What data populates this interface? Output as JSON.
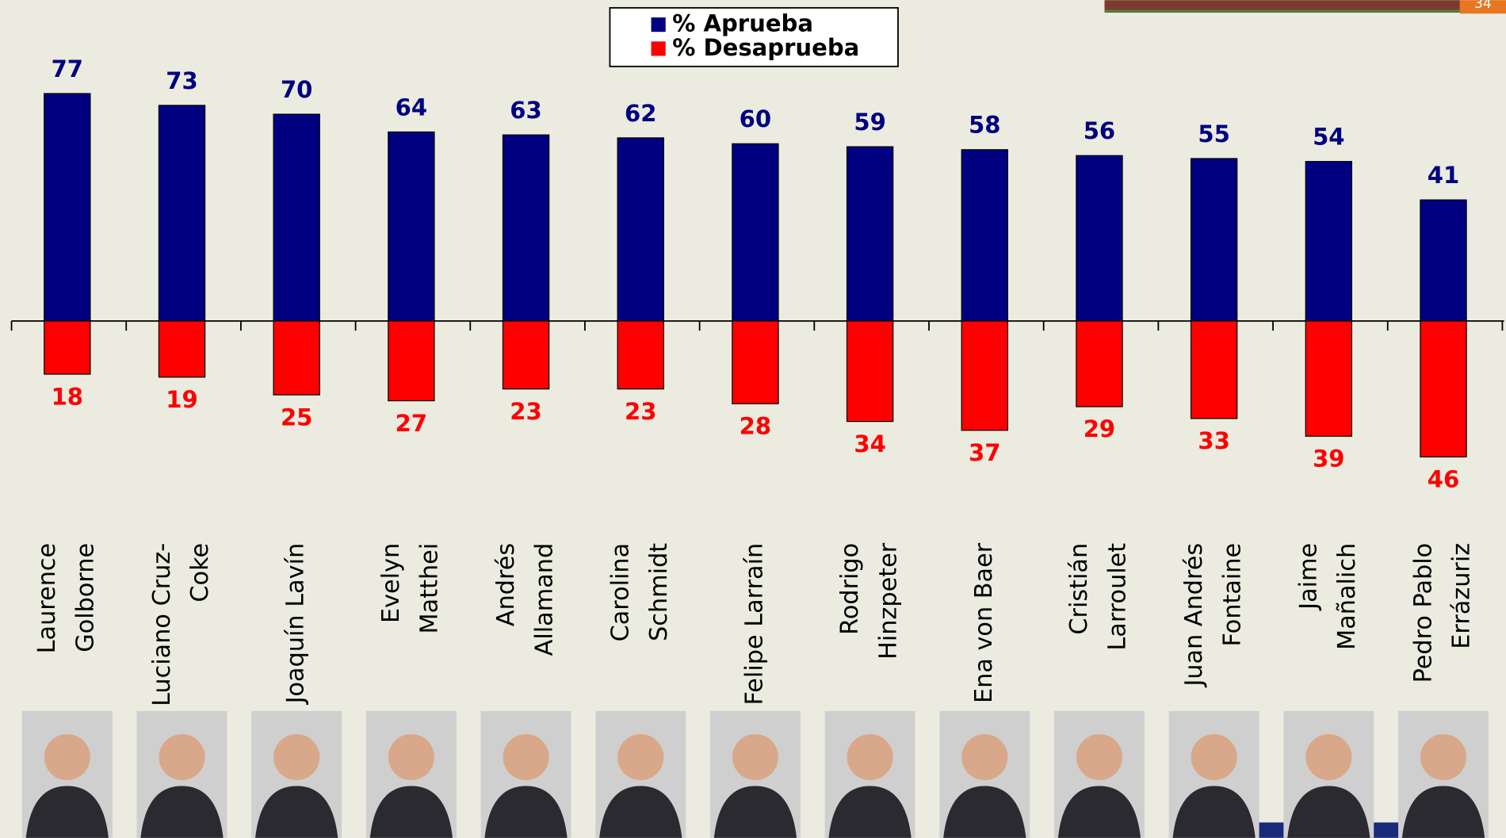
{
  "page_number": "34",
  "chart_data": {
    "type": "bar",
    "categories": [
      [
        "Laurence",
        "Golborne"
      ],
      [
        "Luciano Cruz-",
        "Coke"
      ],
      [
        "Joaquín Lavín"
      ],
      [
        "Evelyn",
        "Matthei"
      ],
      [
        "Andrés",
        "Allamand"
      ],
      [
        "Carolina",
        "Schmidt"
      ],
      [
        "Felipe Larraín"
      ],
      [
        "Rodrigo",
        "Hinzpeter"
      ],
      [
        "Ena von Baer"
      ],
      [
        "Cristián",
        "Larroulet"
      ],
      [
        "Juan Andrés",
        "Fontaine"
      ],
      [
        "Jaime",
        "Mañalich"
      ],
      [
        "Pedro Pablo",
        "Errázuriz"
      ]
    ],
    "series": [
      {
        "name": "% Aprueba",
        "color": "#000080",
        "direction": "up",
        "values": [
          77,
          73,
          70,
          64,
          63,
          62,
          60,
          59,
          58,
          56,
          55,
          54,
          41
        ]
      },
      {
        "name": "% Desaprueba",
        "color": "#ff0000",
        "direction": "down",
        "values": [
          18,
          19,
          25,
          27,
          23,
          23,
          28,
          34,
          37,
          29,
          33,
          39,
          46
        ]
      }
    ]
  }
}
